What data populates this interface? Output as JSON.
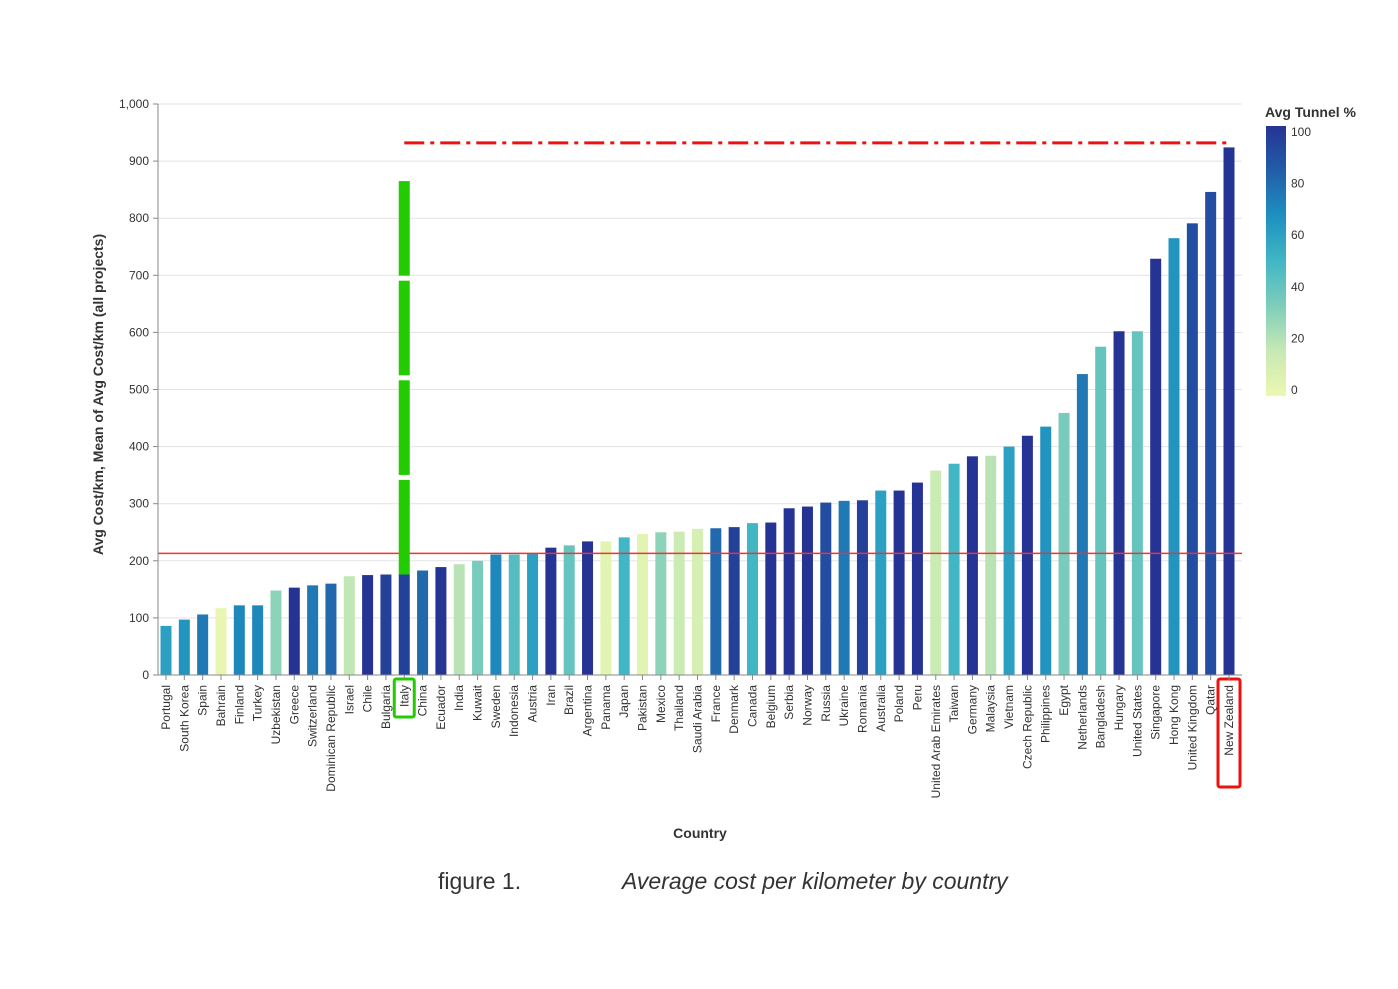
{
  "chart_data": {
    "type": "bar",
    "xlabel": "Country",
    "ylabel": "Avg Cost/km, Mean of Avg Cost/km (all projects)",
    "ylim": [
      0,
      1000
    ],
    "yticks": [
      "0",
      "100",
      "200",
      "300",
      "400",
      "500",
      "600",
      "700",
      "800",
      "900",
      "1,000"
    ],
    "grid": true,
    "legend": {
      "title": "Avg Tunnel %",
      "placement": "top-right",
      "ticks": [
        "100",
        "80",
        "60",
        "40",
        "20",
        "0"
      ]
    },
    "color_encoding": "Avg Tunnel %",
    "series": [
      {
        "categories": [
          "Portugal",
          "South Korea",
          "Spain",
          "Bahrain",
          "Finland",
          "Turkey",
          "Uzbekistan",
          "Greece",
          "Switzerland",
          "Dominican Republic",
          "Israel",
          "Chile",
          "Bulgaria",
          "Italy",
          "China",
          "Ecuador",
          "India",
          "Kuwait",
          "Sweden",
          "Indonesia",
          "Austria",
          "Iran",
          "Brazil",
          "Argentina",
          "Panama",
          "Japan",
          "Pakistan",
          "Mexico",
          "Thailand",
          "Saudi Arabia",
          "France",
          "Denmark",
          "Canada",
          "Belgium",
          "Serbia",
          "Norway",
          "Russia",
          "Ukraine",
          "Romania",
          "Australia",
          "Poland",
          "Peru",
          "United Arab Emirates",
          "Taiwan",
          "Germany",
          "Malaysia",
          "Vietnam",
          "Czech Republic",
          "Philippines",
          "Egypt",
          "Netherlands",
          "Bangladesh",
          "Hungary",
          "United States",
          "Singapore",
          "Hong Kong",
          "United Kingdom",
          "Qatar",
          "New Zealand"
        ],
        "values": [
          86,
          97,
          106,
          117,
          122,
          122,
          148,
          153,
          157,
          160,
          173,
          175,
          176,
          176,
          183,
          189,
          194,
          200,
          211,
          211,
          213,
          223,
          227,
          234,
          234,
          241,
          247,
          250,
          251,
          256,
          257,
          259,
          266,
          267,
          292,
          295,
          302,
          305,
          306,
          323,
          323,
          337,
          358,
          370,
          383,
          384,
          400,
          419,
          435,
          459,
          527,
          575,
          602,
          602,
          729,
          765,
          791,
          846,
          924
        ],
        "tunnel_pct": [
          60,
          65,
          75,
          2,
          70,
          70,
          30,
          100,
          75,
          80,
          18,
          100,
          95,
          95,
          80,
          100,
          20,
          35,
          70,
          45,
          60,
          100,
          40,
          100,
          5,
          50,
          5,
          30,
          15,
          10,
          80,
          95,
          50,
          100,
          100,
          100,
          90,
          75,
          95,
          60,
          100,
          100,
          15,
          50,
          100,
          20,
          60,
          100,
          65,
          35,
          75,
          40,
          100,
          40,
          100,
          65,
          90,
          90,
          100
        ]
      }
    ],
    "colors": {
      "scale": [
        "#edf8b1",
        "#c7e9b4",
        "#7fcdbb",
        "#41b6c4",
        "#1d91c0",
        "#225ea8",
        "#253494"
      ],
      "reference_line": "#ee3333",
      "dashed_line": "#ee1111",
      "italy_highlight": "#22cc00",
      "nz_highlight": "#ee1111"
    },
    "annotations": {
      "reference_line_value": 213,
      "dashed_line_value": 932,
      "dashed_line_start_category": "Italy",
      "italy_bar_extension_top": 865,
      "highlight_green": "Italy",
      "highlight_red": "New Zealand"
    }
  },
  "caption": {
    "label": "figure 1.",
    "text": "Average cost per kilometer by country"
  }
}
